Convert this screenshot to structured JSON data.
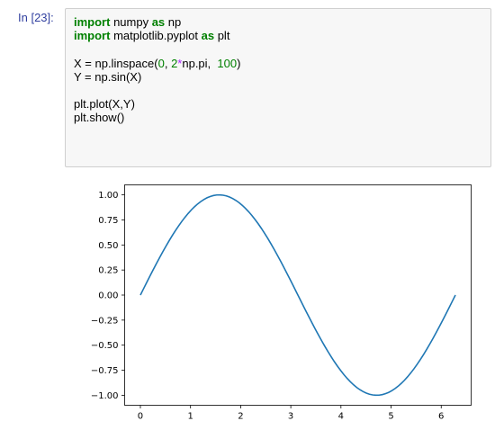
{
  "prompt": "In [23]:",
  "code": {
    "line1": {
      "kw1": "import",
      "t1": " numpy ",
      "kw2": "as",
      "t2": " np"
    },
    "line2": {
      "kw1": "import",
      "t1": " matplotlib.pyplot ",
      "kw2": "as",
      "t2": " plt"
    },
    "line4": {
      "t1": "X = np.linspace(",
      "n1": "0",
      "t2": ", ",
      "n2": "2",
      "op": "*",
      "t3": "np.pi,  ",
      "n3": "100",
      "t4": ")"
    },
    "line5": {
      "t1": "Y = np.sin(X)"
    },
    "line7": {
      "t1": "plt.plot(X,Y)"
    },
    "line8": {
      "t1": "plt.show()"
    }
  },
  "chart_data": {
    "type": "line",
    "function": "sin",
    "x_range": [
      0,
      6.283185307179586
    ],
    "num_points": 100,
    "series": [
      {
        "name": "",
        "color": "#1f77b4"
      }
    ],
    "xlim": [
      -0.314,
      6.597
    ],
    "ylim": [
      -1.1,
      1.1
    ],
    "xticks": [
      0,
      1,
      2,
      3,
      4,
      5,
      6
    ],
    "xtick_labels": [
      "0",
      "1",
      "2",
      "3",
      "4",
      "5",
      "6"
    ],
    "yticks": [
      1.0,
      0.75,
      0.5,
      0.25,
      0.0,
      -0.25,
      -0.5,
      -0.75,
      -1.0
    ],
    "ytick_labels": [
      "1.00",
      "0.75",
      "0.50",
      "0.25",
      "0.00",
      "−0.25",
      "−0.50",
      "−0.75",
      "−1.00"
    ],
    "grid": false,
    "title": "",
    "xlabel": "",
    "ylabel": ""
  }
}
